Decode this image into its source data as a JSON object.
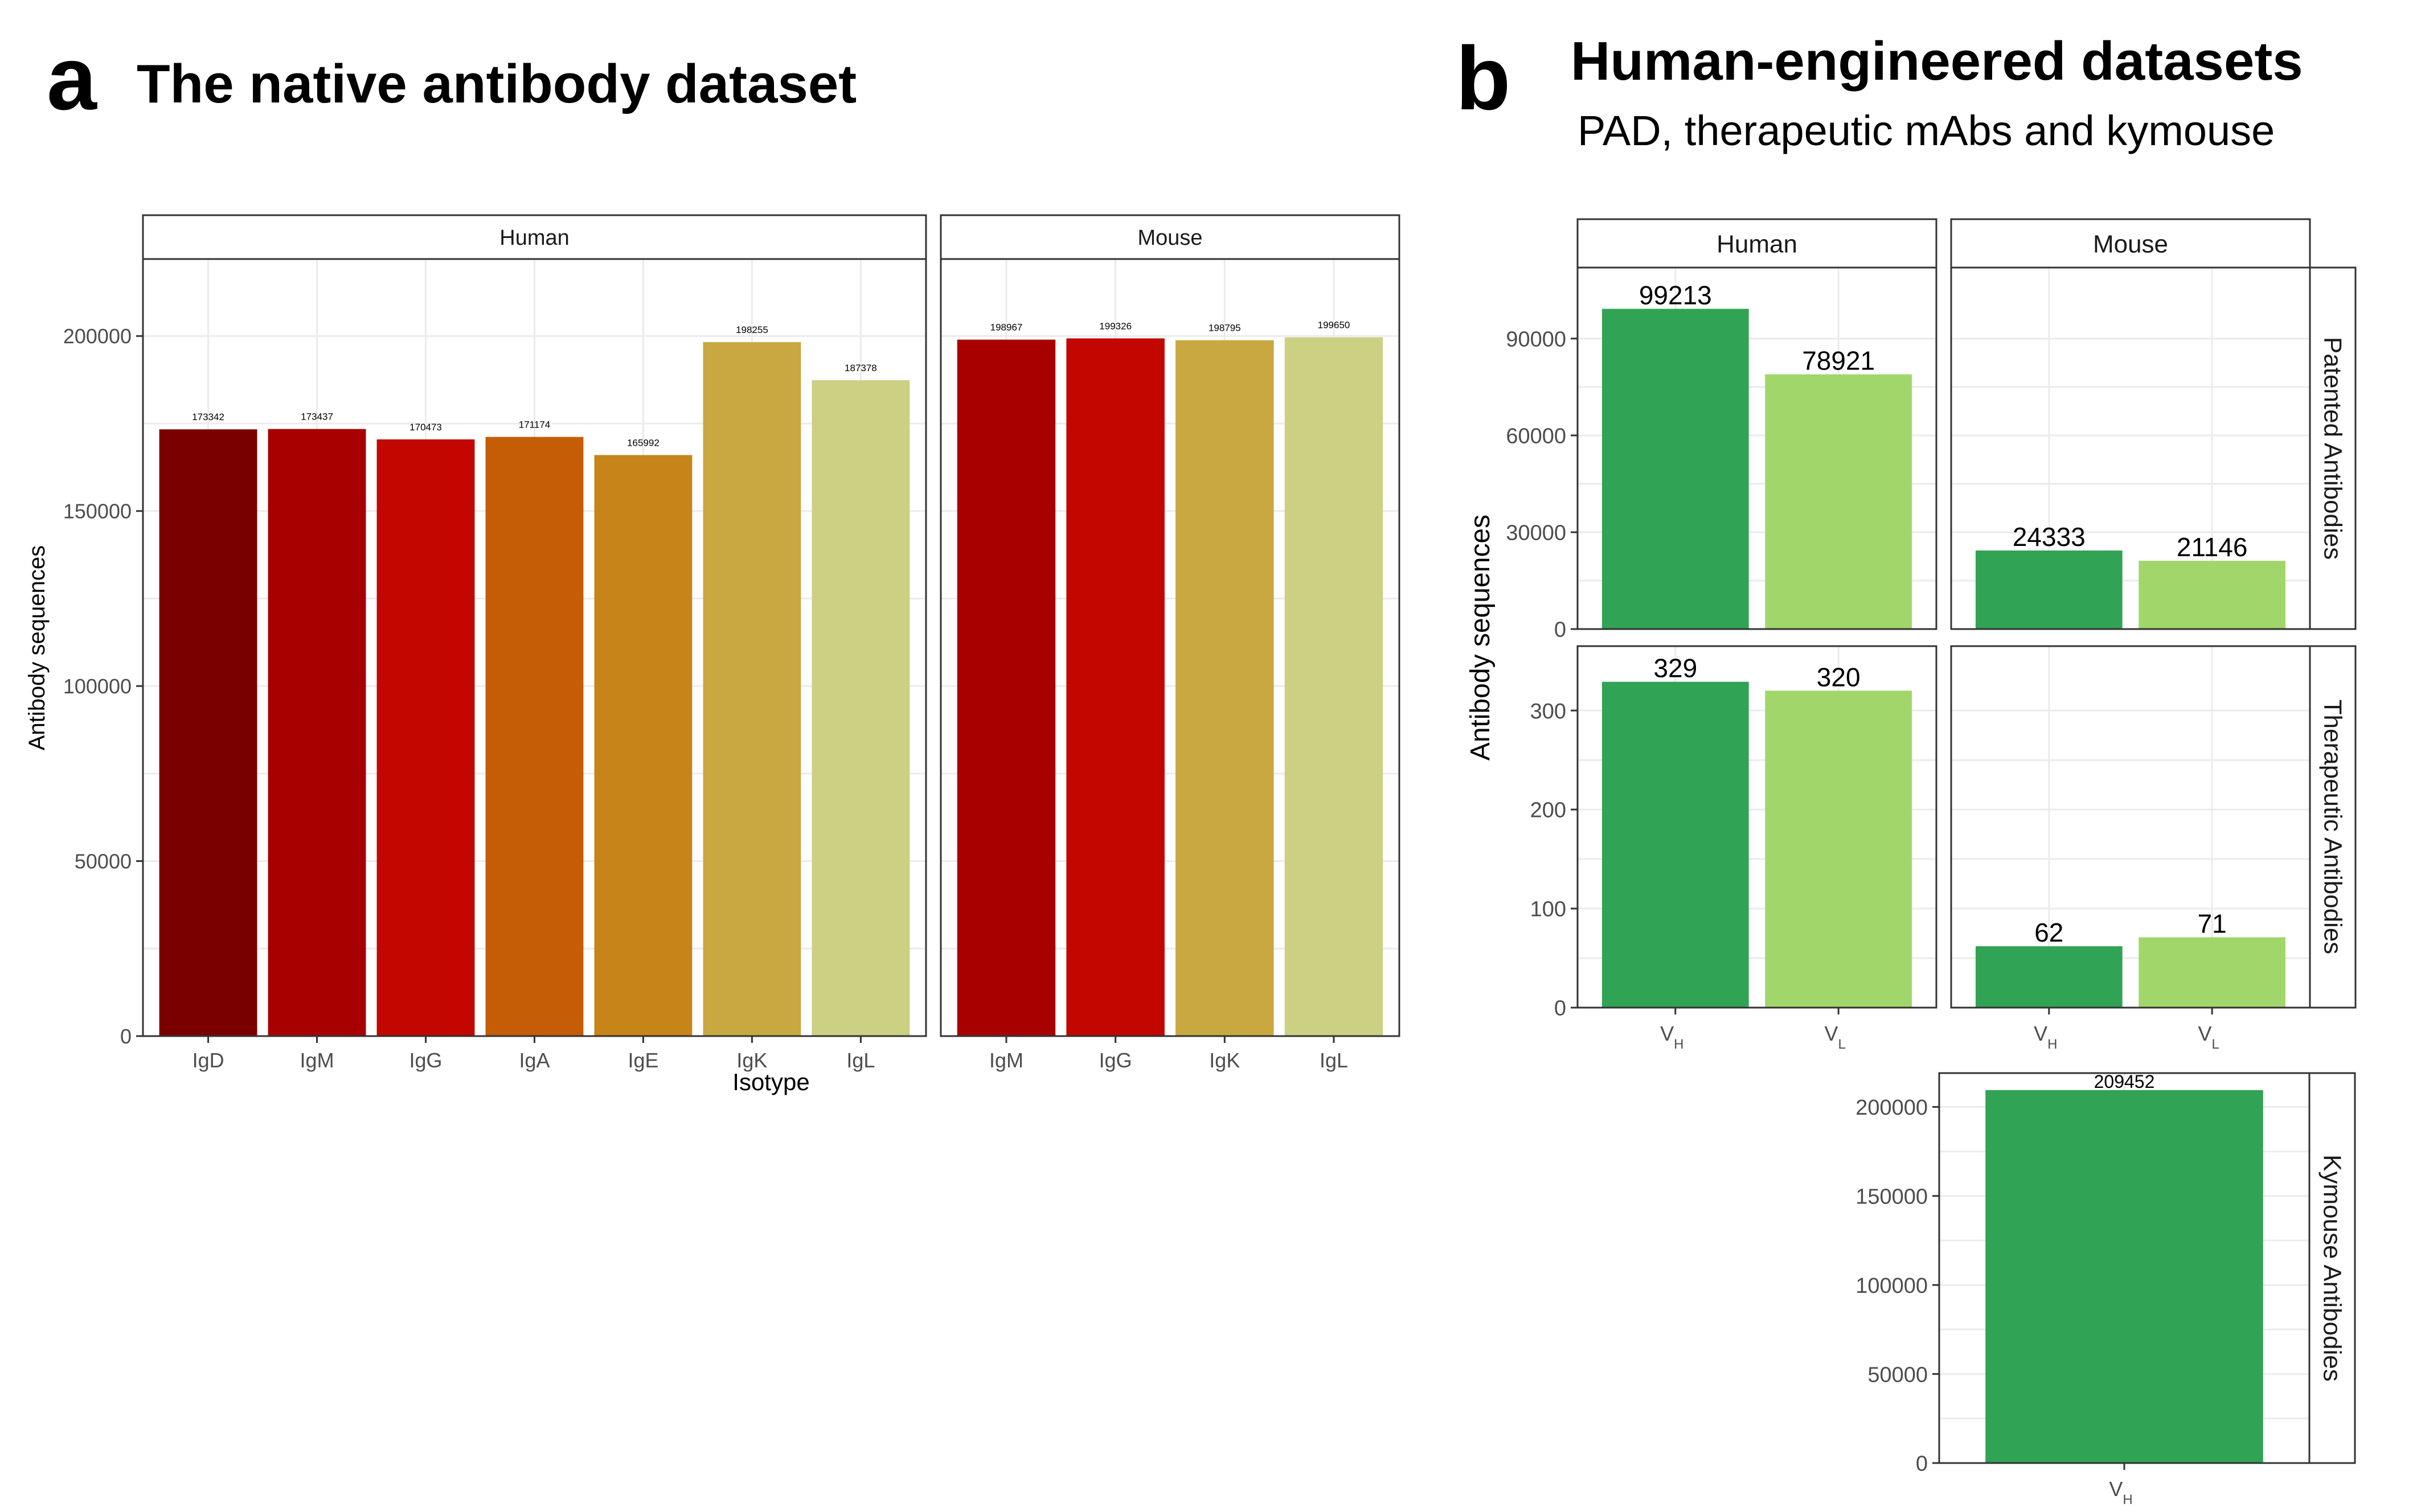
{
  "panel_a": {
    "letter": "a",
    "title": "The native antibody dataset"
  },
  "panel_b": {
    "letter": "b",
    "title": "Human-engineered datasets",
    "subtitle": "PAD, therapeutic mAbs and kymouse"
  },
  "chart_data": [
    {
      "type": "bar",
      "id": "native",
      "title": "The native antibody dataset",
      "xlabel": "Isotype",
      "ylabel": "Antibody sequences",
      "ylim": [
        0,
        222000
      ],
      "yticks": [
        0,
        50000,
        100000,
        150000,
        200000
      ],
      "grid": true,
      "facets": [
        {
          "name": "Human",
          "categories": [
            "IgD",
            "IgM",
            "IgG",
            "IgA",
            "IgE",
            "IgK",
            "IgL"
          ],
          "values": [
            173342,
            173437,
            170473,
            171174,
            165992,
            198255,
            187378
          ],
          "colors": [
            "#7a0000",
            "#a80000",
            "#c30600",
            "#c55c06",
            "#c78418",
            "#c9a842",
            "#ccd083"
          ]
        },
        {
          "name": "Mouse",
          "categories": [
            "IgM",
            "IgG",
            "IgK",
            "IgL"
          ],
          "values": [
            198967,
            199326,
            198795,
            199650
          ],
          "colors": [
            "#a80000",
            "#c30600",
            "#c9a842",
            "#ccd083"
          ]
        }
      ]
    },
    {
      "type": "bar",
      "id": "engineered",
      "title": "Human-engineered datasets",
      "subtitle": "PAD, therapeutic mAbs and kymouse",
      "ylabel": "Antibody sequences",
      "grid": true,
      "column_facets": [
        "Human",
        "Mouse"
      ],
      "rows": [
        {
          "name": "Patented Antibodies",
          "ylim": [
            0,
            112000
          ],
          "yticks": [
            0,
            30000,
            60000,
            90000
          ],
          "cells": [
            {
              "facet": "Human",
              "categories": [
                "VH",
                "VL"
              ],
              "values": [
                99213,
                78921
              ]
            },
            {
              "facet": "Mouse",
              "categories": [
                "VH",
                "VL"
              ],
              "values": [
                24333,
                21146
              ]
            }
          ]
        },
        {
          "name": "Therapeutic Antibodies",
          "ylim": [
            0,
            365
          ],
          "yticks": [
            0,
            100,
            200,
            300
          ],
          "cells": [
            {
              "facet": "Human",
              "categories": [
                "VH",
                "VL"
              ],
              "values": [
                329,
                320
              ]
            },
            {
              "facet": "Mouse",
              "categories": [
                "VH",
                "VL"
              ],
              "values": [
                62,
                71
              ]
            }
          ]
        },
        {
          "name": "Kymouse Antibodies",
          "ylim": [
            0,
            219000
          ],
          "yticks": [
            0,
            50000,
            100000,
            150000,
            200000
          ],
          "cells": [
            {
              "facet": "Kymouse",
              "categories": [
                "VH"
              ],
              "values": [
                209452
              ]
            }
          ]
        }
      ],
      "tick_labels": {
        "Patented Antibodies": {
          "main": "V",
          "sub": [
            "H",
            "L"
          ]
        },
        "Therapeutic Antibodies": {
          "main": "V",
          "sub": [
            "H",
            "L"
          ]
        },
        "Kymouse Antibodies": {
          "main": "V",
          "sub": [
            "H"
          ]
        }
      },
      "colors": {
        "VH": "#31a354",
        "VL": "#a1d76a"
      }
    }
  ]
}
